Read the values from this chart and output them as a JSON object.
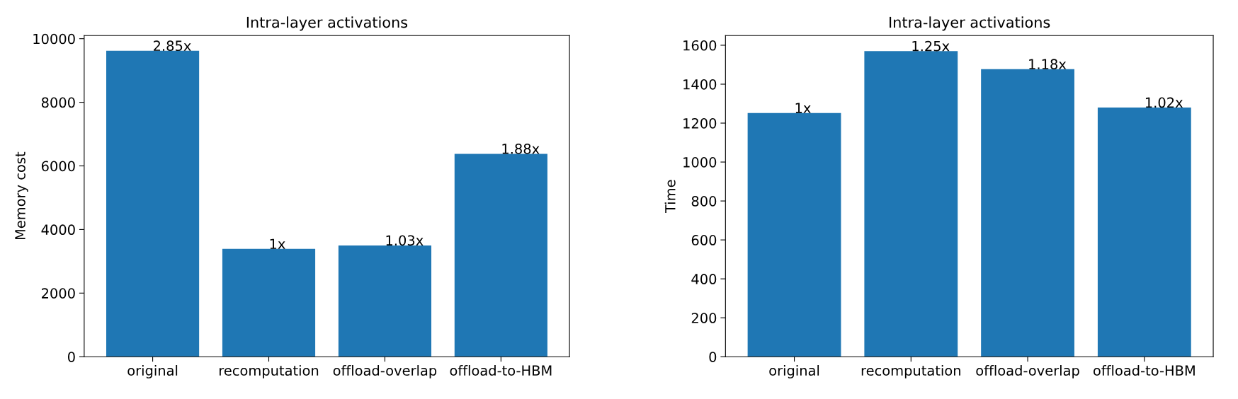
{
  "chart_data": [
    {
      "type": "bar",
      "title": "Intra-layer activations",
      "ylabel": "Memory cost",
      "categories": [
        "original",
        "recomputation",
        "offload-overlap",
        "offload-to-HBM"
      ],
      "values": [
        9620,
        3390,
        3500,
        6380
      ],
      "color": "#1f77b4",
      "annotations": [
        {
          "text": "2.85x",
          "x": "original",
          "y": 9620
        },
        {
          "text": "1x",
          "x": "recomputation",
          "y": 3390
        },
        {
          "text": "1.03x",
          "x": "offload-overlap",
          "y": 3500
        },
        {
          "text": "1.88x",
          "x": "offload-to-HBM",
          "y": 6380
        }
      ],
      "ylim": [
        0,
        10100
      ],
      "yticks": [
        0,
        2000,
        4000,
        6000,
        8000,
        10000
      ]
    },
    {
      "type": "bar",
      "title": "Intra-layer activations",
      "ylabel": "Time",
      "categories": [
        "original",
        "recomputation",
        "offload-overlap",
        "offload-to-HBM"
      ],
      "values": [
        1252,
        1570,
        1477,
        1280
      ],
      "color": "#1f77b4",
      "annotations": [
        {
          "text": "1x",
          "x": "original",
          "y": 1252
        },
        {
          "text": "1.25x",
          "x": "recomputation",
          "y": 1570
        },
        {
          "text": "1.18x",
          "x": "offload-overlap",
          "y": 1477
        },
        {
          "text": "1.02x",
          "x": "offload-to-HBM",
          "y": 1280
        }
      ],
      "ylim": [
        0,
        1650
      ],
      "yticks": [
        0,
        200,
        400,
        600,
        800,
        1000,
        1200,
        1400,
        1600
      ]
    }
  ]
}
